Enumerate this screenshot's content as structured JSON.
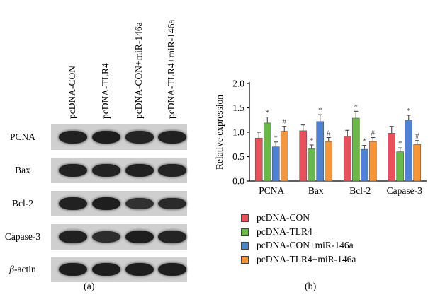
{
  "blot": {
    "panel_label": "(a)",
    "lanes": [
      "pcDNA-CON",
      "pcDNA-TLR4",
      "pcDNA-CON+miR-146a",
      "pcDNA-TLR4+miR-146a"
    ],
    "rows": [
      {
        "label": "PCNA",
        "intensity": [
          0.95,
          1.0,
          0.9,
          0.95
        ]
      },
      {
        "label": "Bax",
        "intensity": [
          0.95,
          0.9,
          0.95,
          0.9
        ]
      },
      {
        "label": "Bcl-2",
        "intensity": [
          0.95,
          1.0,
          0.75,
          0.85
        ]
      },
      {
        "label": "Capase-3",
        "intensity": [
          0.95,
          0.8,
          1.0,
          0.9
        ]
      },
      {
        "label": "β-actin",
        "label_italic": "β",
        "label_rest": "-actin",
        "intensity": [
          1.0,
          1.0,
          1.0,
          1.0
        ]
      }
    ]
  },
  "chart_data": {
    "type": "bar",
    "panel_label": "(b)",
    "ylabel": "Relative expression",
    "ylim": [
      0,
      2.0
    ],
    "yticks": [
      "0.0",
      "0.5",
      "1.0",
      "1.5",
      "2.0"
    ],
    "ytick_values": [
      0.0,
      0.5,
      1.0,
      1.5,
      2.0
    ],
    "categories": [
      "PCNA",
      "Bax",
      "Bcl-2",
      "Capase-3"
    ],
    "series": [
      {
        "name": "pcDNA-CON",
        "color": "#e8505b",
        "values": [
          0.88,
          1.03,
          0.92,
          0.98
        ],
        "errors": [
          0.12,
          0.12,
          0.12,
          0.14
        ],
        "marks": [
          "",
          "",
          "",
          ""
        ]
      },
      {
        "name": "pcDNA-TLR4",
        "color": "#6bb84a",
        "values": [
          1.19,
          0.66,
          1.29,
          0.6
        ],
        "errors": [
          0.12,
          0.08,
          0.14,
          0.08
        ],
        "marks": [
          "*",
          "*",
          "*",
          "*"
        ]
      },
      {
        "name": "pcDNA-CON+miR-146a",
        "color": "#4f83d1",
        "values": [
          0.7,
          1.22,
          0.65,
          1.25
        ],
        "errors": [
          0.1,
          0.14,
          0.08,
          0.1
        ],
        "marks": [
          "*",
          "*",
          "*",
          "*"
        ]
      },
      {
        "name": "pcDNA-TLR4+miR-146a",
        "color": "#f5963a",
        "values": [
          1.02,
          0.81,
          0.81,
          0.75
        ],
        "errors": [
          0.1,
          0.08,
          0.08,
          0.08
        ],
        "marks": [
          "#",
          "#",
          "#",
          "#"
        ]
      }
    ],
    "legend_position": "bottom"
  }
}
